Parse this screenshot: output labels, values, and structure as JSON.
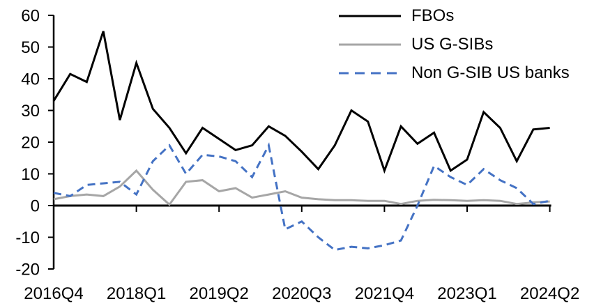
{
  "chart_data": {
    "type": "line",
    "title": "",
    "xlabel": "",
    "ylabel": "",
    "grid": false,
    "legend_position": "top-right",
    "ylim": [
      -20,
      60
    ],
    "y_ticks": [
      60,
      50,
      40,
      30,
      20,
      10,
      0,
      -10,
      -20
    ],
    "x_tick_labels": [
      "2016Q4",
      "2018Q1",
      "2019Q2",
      "2020Q3",
      "2021Q4",
      "2023Q1",
      "2024Q2"
    ],
    "categories": [
      "2016Q4",
      "2017Q1",
      "2017Q2",
      "2017Q3",
      "2017Q4",
      "2018Q1",
      "2018Q2",
      "2018Q3",
      "2018Q4",
      "2019Q1",
      "2019Q2",
      "2019Q3",
      "2019Q4",
      "2020Q1",
      "2020Q2",
      "2020Q3",
      "2020Q4",
      "2021Q1",
      "2021Q2",
      "2021Q3",
      "2021Q4",
      "2022Q1",
      "2022Q2",
      "2022Q3",
      "2022Q4",
      "2023Q1",
      "2023Q2",
      "2023Q3",
      "2023Q4",
      "2024Q1",
      "2024Q2"
    ],
    "series": [
      {
        "name": "FBOs",
        "color": "#000000",
        "style": "solid",
        "values": [
          33,
          41.5,
          39,
          55,
          27,
          45,
          30.5,
          24.5,
          16.5,
          24.5,
          21,
          17.5,
          19,
          25,
          22,
          17,
          11.5,
          19,
          30,
          26.5,
          11,
          25,
          19.5,
          23,
          11,
          14.5,
          29.5,
          24.5,
          14,
          24,
          24.5
        ]
      },
      {
        "name": "US G-SIBs",
        "color": "#a6a6a6",
        "style": "solid",
        "values": [
          2,
          3,
          3.5,
          3,
          6,
          11,
          5,
          0.3,
          7.5,
          8,
          4.5,
          5.5,
          2.5,
          3.5,
          4.5,
          2.5,
          2,
          1.7,
          1.7,
          1.5,
          1.5,
          0.5,
          1.5,
          1.8,
          1.7,
          1.5,
          1.7,
          1.5,
          0.5,
          1,
          1.3
        ]
      },
      {
        "name": "Non G-SIB US banks",
        "color": "#4472c4",
        "style": "dashed",
        "values": [
          4,
          3,
          6.5,
          7,
          7.5,
          3.5,
          14,
          19,
          10,
          16,
          15.5,
          14,
          9,
          19,
          -7.5,
          -5,
          -10,
          -14,
          -13,
          -13.5,
          -12.5,
          -11,
          0,
          12.5,
          9,
          6.5,
          11.5,
          8,
          5.5,
          0.5,
          1.5
        ]
      }
    ]
  }
}
